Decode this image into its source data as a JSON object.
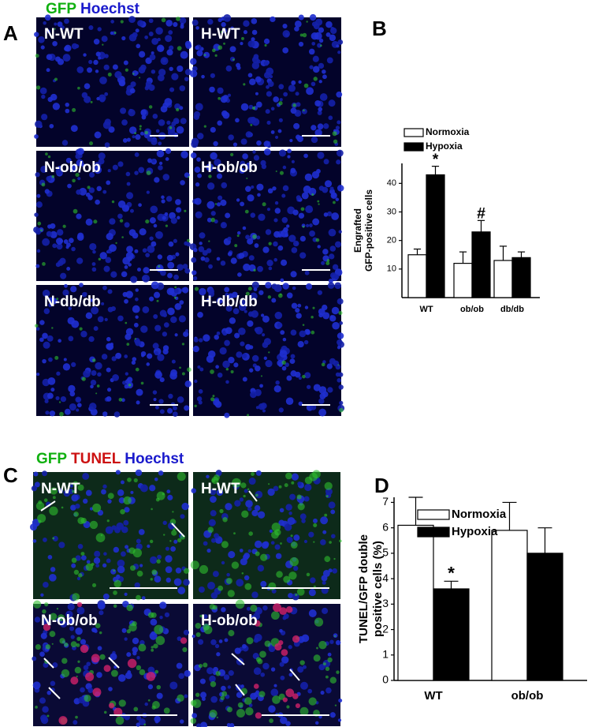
{
  "figure": {
    "panel_A": {
      "letter": "A",
      "stain": [
        "GFP",
        "Hoechst"
      ],
      "images": [
        "N-WT",
        "H-WT",
        "N-ob/ob",
        "H-ob/ob",
        "N-db/db",
        "H-db/db"
      ]
    },
    "panel_C": {
      "letter": "C",
      "stain": [
        "GFP",
        "TUNEL",
        "Hoechst"
      ],
      "images": [
        "N-WT",
        "H-WT",
        "N-ob/ob",
        "H-ob/ob"
      ]
    }
  },
  "chart_data": [
    {
      "type": "bar",
      "panel": "B",
      "y_label": [
        "Engrafted",
        "GFP-positive cells"
      ],
      "categories": [
        "WT",
        "ob/ob",
        "db/db"
      ],
      "series": [
        {
          "name": "Normoxia",
          "color": "#ffffff",
          "values": [
            15,
            12,
            13
          ],
          "errors": [
            2,
            4,
            5
          ]
        },
        {
          "name": "Hypoxia",
          "color": "#000000",
          "values": [
            43,
            23,
            14
          ],
          "errors": [
            3,
            4,
            2
          ],
          "annotations": [
            "*",
            "#",
            null
          ]
        }
      ],
      "ylim": [
        0,
        47
      ],
      "yticks": [
        10,
        20,
        30,
        40
      ],
      "legend": "top-left"
    },
    {
      "type": "bar",
      "panel": "D",
      "y_label": [
        "TUNEL/GFP double",
        "positive cells (%)"
      ],
      "categories": [
        "WT",
        "ob/ob"
      ],
      "series": [
        {
          "name": "Normoxia",
          "color": "#ffffff",
          "values": [
            6.1,
            5.9
          ],
          "errors": [
            1.1,
            1.1
          ]
        },
        {
          "name": "Hypoxia",
          "color": "#000000",
          "values": [
            3.6,
            5.0
          ],
          "errors": [
            0.3,
            1.0
          ],
          "annotations": [
            "*",
            null
          ]
        }
      ],
      "ylim": [
        0,
        7.2
      ],
      "yticks": [
        0,
        1,
        2,
        3,
        4,
        5,
        6,
        7
      ],
      "legend": "top-left"
    }
  ]
}
